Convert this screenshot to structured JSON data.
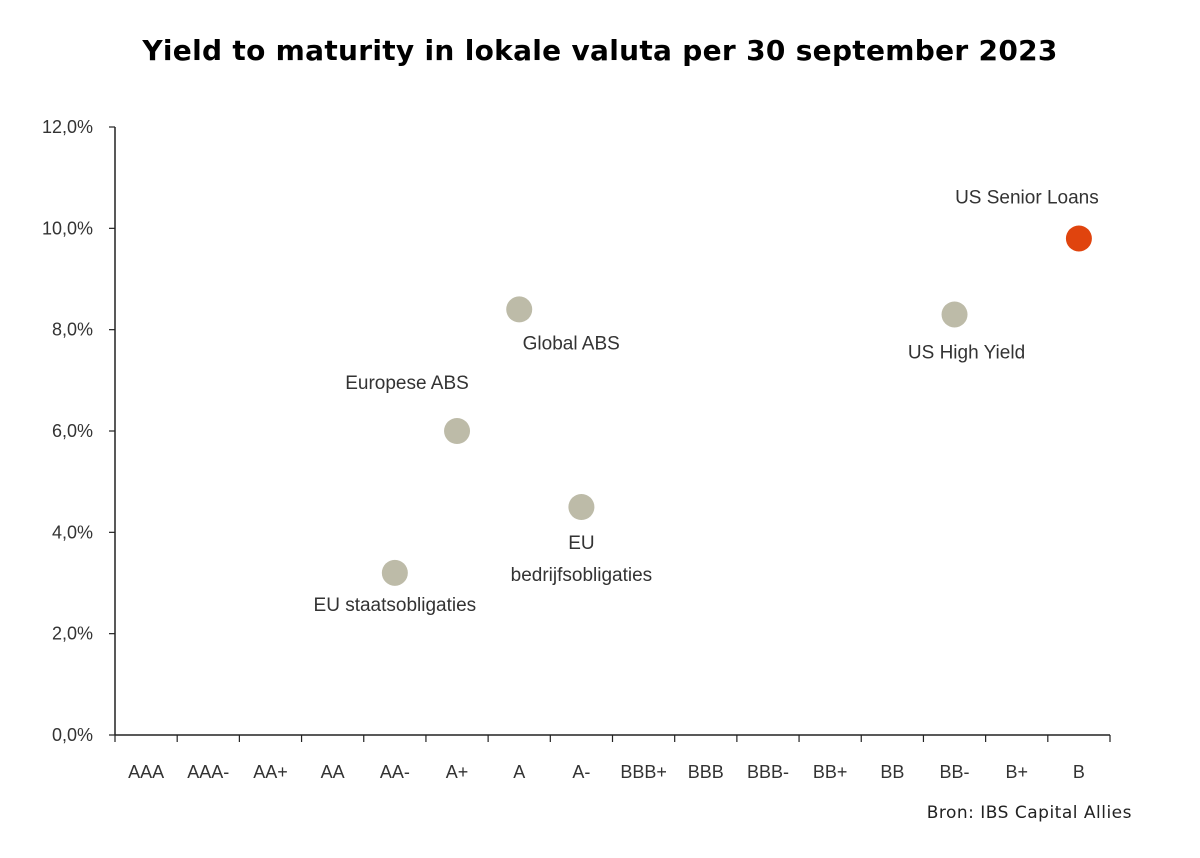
{
  "chart_data": {
    "type": "scatter",
    "title": "Yield to maturity in lokale valuta per 30 september 2023",
    "xlabel": "",
    "ylabel": "",
    "categories": [
      "AAA",
      "AAA-",
      "AA+",
      "AA",
      "AA-",
      "A+",
      "A",
      "A-",
      "BBB+",
      "BBB",
      "BBB-",
      "BB+",
      "BB",
      "BB-",
      "B+",
      "B"
    ],
    "ylim": [
      0,
      12
    ],
    "yticks": [
      "0,0%",
      "2,0%",
      "4,0%",
      "6,0%",
      "8,0%",
      "10,0%",
      "12,0%"
    ],
    "grid": false,
    "points": [
      {
        "label": "EU staatsobligaties",
        "x": "AA-",
        "y": 3.2,
        "color": "#BDBBA8"
      },
      {
        "label": "Europese ABS",
        "x": "A+",
        "y": 6.0,
        "color": "#BDBBA8"
      },
      {
        "label": "Global ABS",
        "x": "A",
        "y": 8.4,
        "color": "#BDBBA8"
      },
      {
        "label": "EU bedrijfsobligaties",
        "label_lines": [
          "EU",
          "bedrijfsobligaties"
        ],
        "x": "A-",
        "y": 4.5,
        "color": "#BDBBA8"
      },
      {
        "label": "US High Yield",
        "x": "BB-",
        "y": 8.3,
        "color": "#BDBBA8"
      },
      {
        "label": "US Senior Loans",
        "x": "B",
        "y": 9.8,
        "color": "#E0440E"
      }
    ]
  },
  "source": "Bron: IBS Capital Allies"
}
